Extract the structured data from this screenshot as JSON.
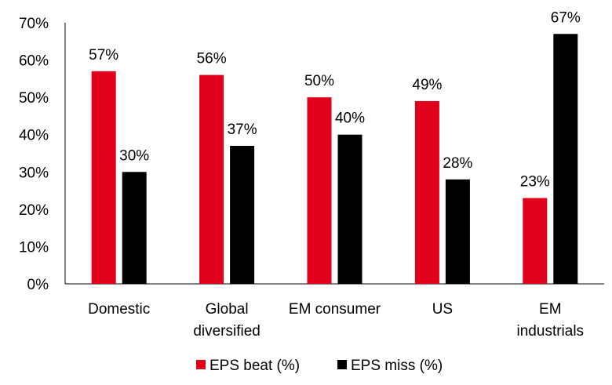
{
  "chart_data": {
    "type": "bar",
    "categories": [
      [
        "Domestic"
      ],
      [
        "Global",
        "diversified"
      ],
      [
        "EM consumer"
      ],
      [
        "US"
      ],
      [
        "EM",
        "industrials"
      ]
    ],
    "series": [
      {
        "name": "EPS beat (%)",
        "values": [
          57,
          56,
          50,
          49,
          23
        ],
        "color": "#E0001B"
      },
      {
        "name": "EPS miss (%)",
        "values": [
          30,
          37,
          40,
          28,
          67
        ],
        "color": "#000000"
      }
    ],
    "data_labels": [
      [
        "57%",
        "56%",
        "50%",
        "49%",
        "23%"
      ],
      [
        "30%",
        "37%",
        "40%",
        "28%",
        "67%"
      ]
    ],
    "ylim": [
      0,
      70
    ],
    "yticks": [
      "0%",
      "10%",
      "20%",
      "30%",
      "40%",
      "50%",
      "60%",
      "70%"
    ],
    "grid": false,
    "legend": "bottom"
  }
}
